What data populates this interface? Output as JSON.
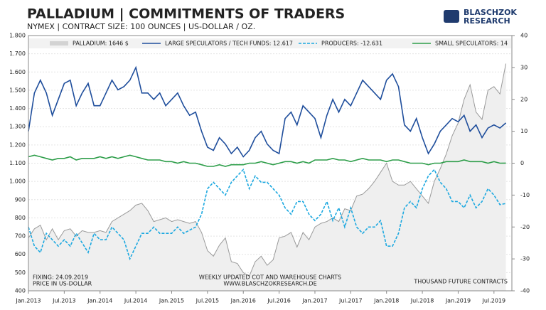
{
  "chart_data": {
    "type": "line",
    "title": "PALLADIUM | COMMITMENTS OF TRADERS",
    "subtitle": "NYMEX | CONTRACT SIZE: 100 OUNCES | US-DOLLAR / OZ.",
    "logo": [
      "BLASCHZOK",
      "RESEARCH"
    ],
    "annotations": [
      "FIXING: 24.09.2019",
      "PRICE IN US-DOLLAR",
      "WEEKLY UPDATED COT AND WAREHOUSE CHARTS",
      "WWW.BLASCHZOKRESEARCH.DE",
      "THOUSAND FUTURE CONTRACTS"
    ],
    "x": [
      "2013-01",
      "2013-02",
      "2013-03",
      "2013-04",
      "2013-05",
      "2013-06",
      "2013-07",
      "2013-08",
      "2013-09",
      "2013-10",
      "2013-11",
      "2013-12",
      "2014-01",
      "2014-02",
      "2014-03",
      "2014-04",
      "2014-05",
      "2014-06",
      "2014-07",
      "2014-08",
      "2014-09",
      "2014-10",
      "2014-11",
      "2014-12",
      "2015-01",
      "2015-02",
      "2015-03",
      "2015-04",
      "2015-05",
      "2015-06",
      "2015-07",
      "2015-08",
      "2015-09",
      "2015-10",
      "2015-11",
      "2015-12",
      "2016-01",
      "2016-02",
      "2016-03",
      "2016-04",
      "2016-05",
      "2016-06",
      "2016-07",
      "2016-08",
      "2016-09",
      "2016-10",
      "2016-11",
      "2016-12",
      "2017-01",
      "2017-02",
      "2017-03",
      "2017-04",
      "2017-05",
      "2017-06",
      "2017-07",
      "2017-08",
      "2017-09",
      "2017-10",
      "2017-11",
      "2017-12",
      "2018-01",
      "2018-02",
      "2018-03",
      "2018-04",
      "2018-05",
      "2018-06",
      "2018-07",
      "2018-08",
      "2018-09",
      "2018-10",
      "2018-11",
      "2018-12",
      "2019-01",
      "2019-02",
      "2019-03",
      "2019-04",
      "2019-05",
      "2019-06",
      "2019-07",
      "2019-08",
      "2019-09"
    ],
    "xlim": [
      "2013-01",
      "2019-10"
    ],
    "xticks": [
      {
        "value": "2013-01",
        "label": "Jan.2013"
      },
      {
        "value": "2013-07",
        "label": "Jul.2013"
      },
      {
        "value": "2014-01",
        "label": "Jan.2014"
      },
      {
        "value": "2014-07",
        "label": "Jul.2014"
      },
      {
        "value": "2015-01",
        "label": "Jan.2015"
      },
      {
        "value": "2015-07",
        "label": "Jul.2015"
      },
      {
        "value": "2016-01",
        "label": "Jan.2016"
      },
      {
        "value": "2016-07",
        "label": "Jul.2016"
      },
      {
        "value": "2017-01",
        "label": "Jan.2017"
      },
      {
        "value": "2017-07",
        "label": "Jul.2017"
      },
      {
        "value": "2018-01",
        "label": "Jan.2018"
      },
      {
        "value": "2018-07",
        "label": "Jul.2018"
      },
      {
        "value": "2019-01",
        "label": "Jan.2019"
      },
      {
        "value": "2019-07",
        "label": "Jul.2019"
      }
    ],
    "ylim": [
      400,
      1800
    ],
    "yticks": [
      {
        "value": 400,
        "label": "400"
      },
      {
        "value": 500,
        "label": "500"
      },
      {
        "value": 600,
        "label": "600"
      },
      {
        "value": 700,
        "label": "700"
      },
      {
        "value": 800,
        "label": "800"
      },
      {
        "value": 900,
        "label": "900"
      },
      {
        "value": 1000,
        "label": "1.000"
      },
      {
        "value": 1100,
        "label": "1.100"
      },
      {
        "value": 1200,
        "label": "1.200"
      },
      {
        "value": 1300,
        "label": "1.300"
      },
      {
        "value": 1400,
        "label": "1.400"
      },
      {
        "value": 1500,
        "label": "1.500"
      },
      {
        "value": 1600,
        "label": "1.600"
      },
      {
        "value": 1700,
        "label": "1.700"
      },
      {
        "value": 1800,
        "label": "1.800"
      }
    ],
    "y2lim": [
      -40,
      40
    ],
    "y2ticks": [
      -40,
      -30,
      -20,
      -10,
      0,
      10,
      20,
      30,
      40
    ],
    "grid": true,
    "series": [
      {
        "name": "PALLADIUM: 1646 $",
        "color": "#9a9a9a",
        "area": true,
        "values": [
          690,
          740,
          760,
          680,
          740,
          680,
          730,
          740,
          700,
          730,
          720,
          720,
          730,
          720,
          780,
          800,
          820,
          840,
          870,
          880,
          840,
          780,
          790,
          800,
          780,
          790,
          780,
          770,
          780,
          720,
          620,
          590,
          650,
          690,
          560,
          550,
          500,
          480,
          560,
          590,
          540,
          570,
          690,
          700,
          720,
          640,
          720,
          680,
          750,
          770,
          780,
          800,
          780,
          850,
          840,
          920,
          930,
          960,
          1000,
          1050,
          1100,
          1000,
          980,
          980,
          1000,
          960,
          920,
          880,
          1000,
          1070,
          1150,
          1250,
          1320,
          1450,
          1530,
          1380,
          1340,
          1500,
          1520,
          1480,
          1646
        ]
      },
      {
        "name": "LARGE SPECULATORS / TECH FUNDS: 12.617",
        "color": "#1f4e9c",
        "axis": "y2",
        "values": [
          10,
          22,
          26,
          22,
          15,
          20,
          25,
          26,
          18,
          22,
          25,
          18,
          18,
          22,
          26,
          23,
          24,
          26,
          30,
          22,
          22,
          20,
          22,
          18,
          20,
          22,
          18,
          15,
          16,
          10,
          5,
          4,
          8,
          6,
          3,
          5,
          2,
          4,
          8,
          10,
          6,
          4,
          3,
          14,
          16,
          12,
          18,
          16,
          14,
          8,
          15,
          20,
          16,
          20,
          18,
          22,
          26,
          24,
          22,
          20,
          26,
          28,
          24,
          12,
          10,
          14,
          8,
          3,
          6,
          10,
          12,
          14,
          13,
          15,
          10,
          12,
          8,
          11,
          12,
          11,
          12.617
        ]
      },
      {
        "name": "PRODUCERS: -12.631",
        "color": "#1ba8e0",
        "axis": "y2",
        "dash": true,
        "values": [
          -20,
          -26,
          -28,
          -22,
          -24,
          -26,
          -24,
          -26,
          -22,
          -25,
          -28,
          -22,
          -24,
          -24,
          -20,
          -22,
          -24,
          -30,
          -26,
          -22,
          -22,
          -20,
          -22,
          -22,
          -22,
          -20,
          -22,
          -21,
          -20,
          -16,
          -8,
          -6,
          -8,
          -10,
          -6,
          -4,
          -2,
          -8,
          -4,
          -6,
          -6,
          -8,
          -10,
          -14,
          -16,
          -12,
          -12,
          -16,
          -18,
          -16,
          -12,
          -18,
          -14,
          -20,
          -14,
          -20,
          -22,
          -20,
          -20,
          -18,
          -26,
          -26,
          -22,
          -14,
          -12,
          -14,
          -8,
          -4,
          -2,
          -6,
          -8,
          -12,
          -12,
          -14,
          -10,
          -14,
          -12,
          -8,
          -10,
          -13,
          -12.631
        ]
      },
      {
        "name": "SMALL SPECULATORS: 14",
        "color": "#2e9e4a",
        "axis": "y2",
        "values": [
          2,
          2.5,
          2,
          1.5,
          1,
          1.5,
          1.5,
          2,
          1,
          1.5,
          1.5,
          1.5,
          2,
          1.5,
          2,
          1.5,
          2,
          2.5,
          2,
          1.5,
          1,
          1,
          1,
          0.5,
          0.5,
          0,
          0.5,
          0,
          0,
          -0.5,
          -1,
          -1,
          -0.5,
          -1,
          -0.5,
          -0.5,
          -0.5,
          0,
          0,
          0.5,
          0,
          -0.5,
          0,
          0.5,
          0.5,
          0,
          0.5,
          0,
          1,
          1,
          1,
          1.5,
          1,
          1,
          0.5,
          1,
          1.5,
          1,
          1,
          1,
          0.5,
          1,
          1,
          0.5,
          0,
          0,
          0,
          -0.5,
          0,
          0,
          0.5,
          0.5,
          0.5,
          1,
          0.5,
          0.5,
          0.5,
          0,
          0.5,
          0,
          0.014
        ]
      }
    ]
  }
}
